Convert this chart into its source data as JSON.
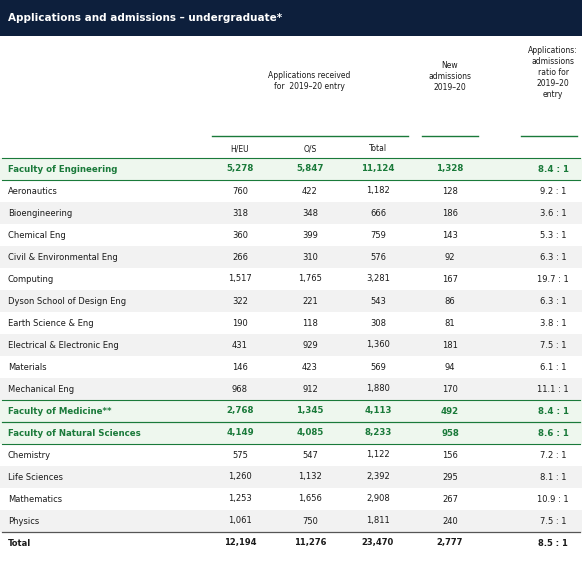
{
  "title": "Applications and admissions – undergraduate*",
  "title_bg": "#0d1f3c",
  "title_color": "#ffffff",
  "rows": [
    {
      "label": "Faculty of Engineering",
      "heu": "5,278",
      "os": "5,847",
      "total": "11,124",
      "new": "1,328",
      "ratio": "8.4 : 1",
      "is_faculty": true,
      "bg": "#eef7ee"
    },
    {
      "label": "Aeronautics",
      "heu": "760",
      "os": "422",
      "total": "1,182",
      "new": "128",
      "ratio": "9.2 : 1",
      "is_faculty": false,
      "bg": "#ffffff"
    },
    {
      "label": "Bioengineering",
      "heu": "318",
      "os": "348",
      "total": "666",
      "new": "186",
      "ratio": "3.6 : 1",
      "is_faculty": false,
      "bg": "#f2f2f2"
    },
    {
      "label": "Chemical Eng",
      "heu": "360",
      "os": "399",
      "total": "759",
      "new": "143",
      "ratio": "5.3 : 1",
      "is_faculty": false,
      "bg": "#ffffff"
    },
    {
      "label": "Civil & Environmental Eng",
      "heu": "266",
      "os": "310",
      "total": "576",
      "new": "92",
      "ratio": "6.3 : 1",
      "is_faculty": false,
      "bg": "#f2f2f2"
    },
    {
      "label": "Computing",
      "heu": "1,517",
      "os": "1,765",
      "total": "3,281",
      "new": "167",
      "ratio": "19.7 : 1",
      "is_faculty": false,
      "bg": "#ffffff"
    },
    {
      "label": "Dyson School of Design Eng",
      "heu": "322",
      "os": "221",
      "total": "543",
      "new": "86",
      "ratio": "6.3 : 1",
      "is_faculty": false,
      "bg": "#f2f2f2"
    },
    {
      "label": "Earth Science & Eng",
      "heu": "190",
      "os": "118",
      "total": "308",
      "new": "81",
      "ratio": "3.8 : 1",
      "is_faculty": false,
      "bg": "#ffffff"
    },
    {
      "label": "Electrical & Electronic Eng",
      "heu": "431",
      "os": "929",
      "total": "1,360",
      "new": "181",
      "ratio": "7.5 : 1",
      "is_faculty": false,
      "bg": "#f2f2f2"
    },
    {
      "label": "Materials",
      "heu": "146",
      "os": "423",
      "total": "569",
      "new": "94",
      "ratio": "6.1 : 1",
      "is_faculty": false,
      "bg": "#ffffff"
    },
    {
      "label": "Mechanical Eng",
      "heu": "968",
      "os": "912",
      "total": "1,880",
      "new": "170",
      "ratio": "11.1 : 1",
      "is_faculty": false,
      "bg": "#f2f2f2"
    },
    {
      "label": "Faculty of Medicine**",
      "heu": "2,768",
      "os": "1,345",
      "total": "4,113",
      "new": "492",
      "ratio": "8.4 : 1",
      "is_faculty": true,
      "bg": "#eef7ee"
    },
    {
      "label": "Faculty of Natural Sciences",
      "heu": "4,149",
      "os": "4,085",
      "total": "8,233",
      "new": "958",
      "ratio": "8.6 : 1",
      "is_faculty": true,
      "bg": "#eef7ee"
    },
    {
      "label": "Chemistry",
      "heu": "575",
      "os": "547",
      "total": "1,122",
      "new": "156",
      "ratio": "7.2 : 1",
      "is_faculty": false,
      "bg": "#ffffff"
    },
    {
      "label": "Life Sciences",
      "heu": "1,260",
      "os": "1,132",
      "total": "2,392",
      "new": "295",
      "ratio": "8.1 : 1",
      "is_faculty": false,
      "bg": "#f2f2f2"
    },
    {
      "label": "Mathematics",
      "heu": "1,253",
      "os": "1,656",
      "total": "2,908",
      "new": "267",
      "ratio": "10.9 : 1",
      "is_faculty": false,
      "bg": "#ffffff"
    },
    {
      "label": "Physics",
      "heu": "1,061",
      "os": "750",
      "total": "1,811",
      "new": "240",
      "ratio": "7.5 : 1",
      "is_faculty": false,
      "bg": "#f2f2f2"
    },
    {
      "label": "Total",
      "heu": "12,194",
      "os": "11,276",
      "total": "23,470",
      "new": "2,777",
      "ratio": "8.5 : 1",
      "is_faculty": false,
      "bg": "#ffffff",
      "is_total": true
    }
  ],
  "faculty_color": "#1a7a3a",
  "text_color": "#1a1a1a",
  "green_line": "#1a7a3a",
  "figsize": [
    5.82,
    5.63
  ],
  "dpi": 100
}
